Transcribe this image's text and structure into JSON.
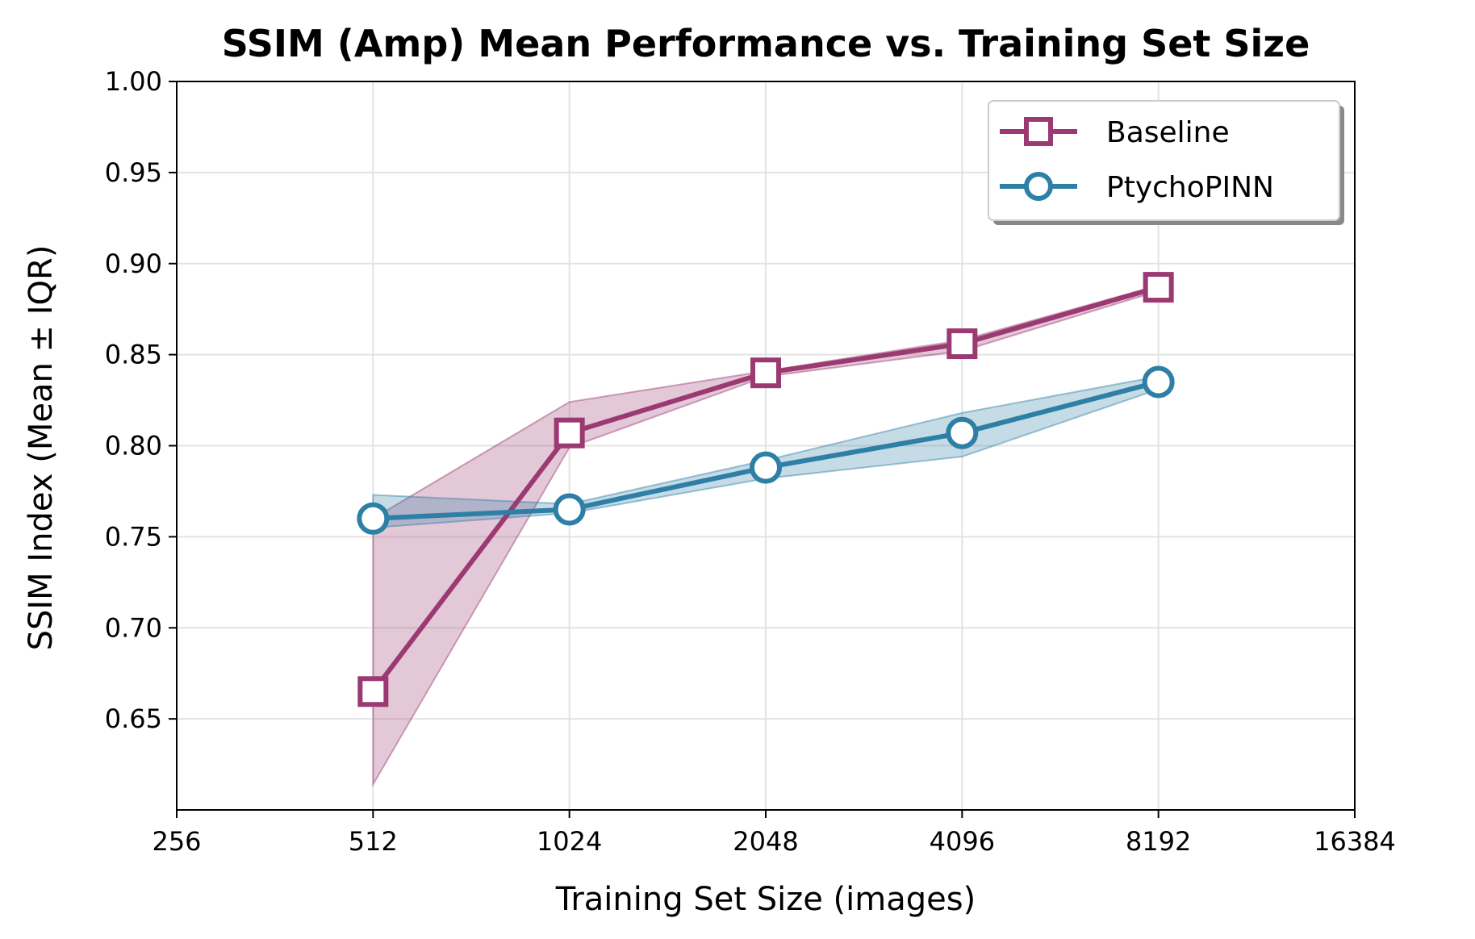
{
  "chart_data": {
    "type": "line",
    "title": "SSIM (Amp) Mean Performance vs. Training Set Size",
    "xlabel": "Training Set Size (images)",
    "ylabel": "SSIM Index (Mean ± IQR)",
    "x_scale": "log2",
    "xlim": [
      256,
      16384
    ],
    "ylim": [
      0.6,
      1.0
    ],
    "x_ticks": [
      256,
      512,
      1024,
      2048,
      4096,
      8192,
      16384
    ],
    "x_tick_labels": [
      "256",
      "512",
      "1024",
      "2048",
      "4096",
      "8192",
      "16384"
    ],
    "y_ticks": [
      0.65,
      0.7,
      0.75,
      0.8,
      0.85,
      0.9,
      0.95,
      1.0
    ],
    "y_tick_labels": [
      "0.65",
      "0.70",
      "0.75",
      "0.80",
      "0.85",
      "0.90",
      "0.95",
      "1.00"
    ],
    "grid": true,
    "legend_position": "top-right",
    "x": [
      512,
      1024,
      2048,
      4096,
      8192
    ],
    "series": [
      {
        "name": "Baseline",
        "color": "#9b3a72",
        "marker": "square",
        "values": [
          0.665,
          0.807,
          0.84,
          0.856,
          0.887
        ],
        "lower": [
          0.614,
          0.799,
          0.838,
          0.852,
          0.885
        ],
        "upper": [
          0.76,
          0.824,
          0.841,
          0.858,
          0.888
        ]
      },
      {
        "name": "PtychoPINN",
        "color": "#2e7fa6",
        "marker": "circle",
        "values": [
          0.76,
          0.765,
          0.788,
          0.807,
          0.835
        ],
        "lower": [
          0.755,
          0.763,
          0.782,
          0.794,
          0.831
        ],
        "upper": [
          0.773,
          0.768,
          0.792,
          0.818,
          0.838
        ]
      }
    ]
  }
}
